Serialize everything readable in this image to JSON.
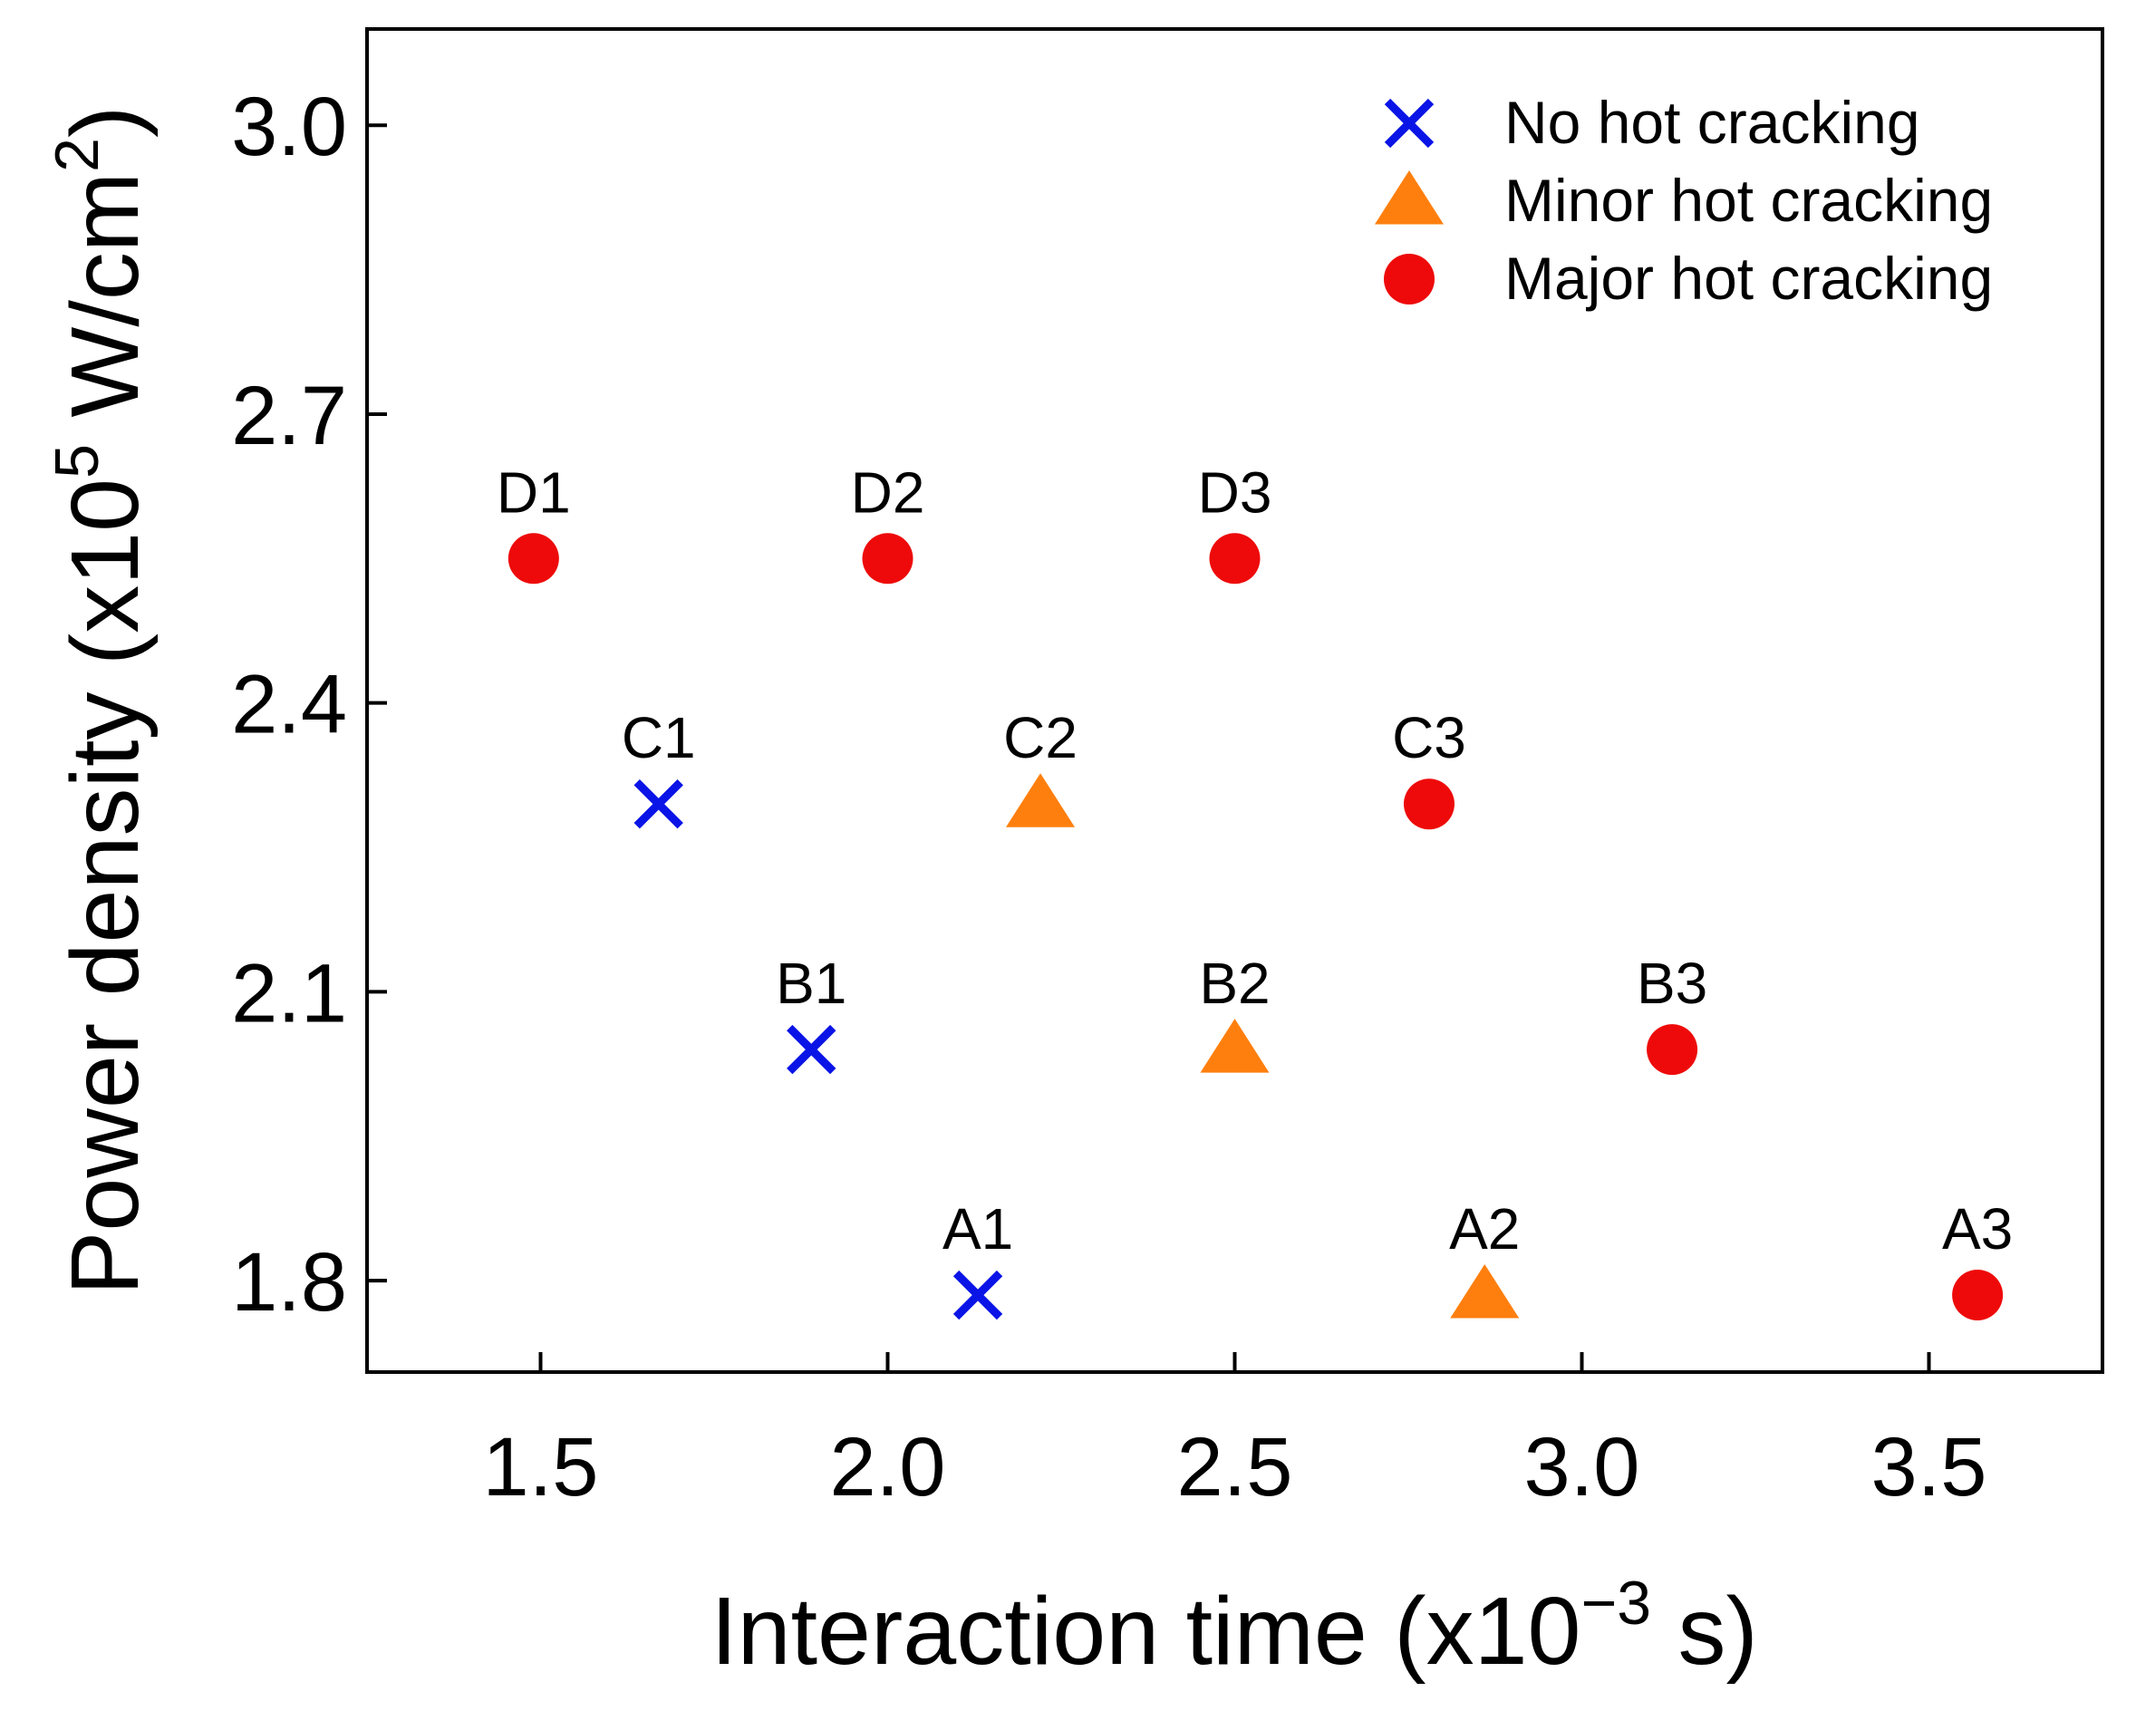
{
  "chart_data": {
    "type": "scatter",
    "title": "",
    "xlabel": {
      "prefix": "Interaction time (x10",
      "sup": "−3",
      "suffix": " s)"
    },
    "ylabel": {
      "prefix": "Power density (x10",
      "sup": "5",
      "mid": " W/cm",
      "sup2": "2",
      "suffix": ")"
    },
    "xlim": [
      1.25,
      3.75
    ],
    "ylim": [
      1.705,
      3.1
    ],
    "xticks": [
      1.5,
      2.0,
      2.5,
      3.0,
      3.5
    ],
    "xtick_labels": [
      "1.5",
      "2.0",
      "2.5",
      "3.0",
      "3.5"
    ],
    "yticks": [
      1.8,
      2.1,
      2.4,
      2.7,
      3.0
    ],
    "ytick_labels": [
      "1.8",
      "2.1",
      "2.4",
      "2.7",
      "3.0"
    ],
    "grid": false,
    "legend_position": "top-right",
    "series": [
      {
        "name": "No hot cracking",
        "marker": "x",
        "color": "#0a14e6",
        "points": [
          {
            "label": "A1",
            "x": 2.13,
            "y": 1.785
          },
          {
            "label": "B1",
            "x": 1.89,
            "y": 2.04
          },
          {
            "label": "C1",
            "x": 1.67,
            "y": 2.295
          }
        ]
      },
      {
        "name": "Minor hot cracking",
        "marker": "triangle",
        "color": "#ff7f0e",
        "points": [
          {
            "label": "A2",
            "x": 2.86,
            "y": 1.785
          },
          {
            "label": "B2",
            "x": 2.5,
            "y": 2.04
          },
          {
            "label": "C2",
            "x": 2.22,
            "y": 2.295
          }
        ]
      },
      {
        "name": "Major hot cracking",
        "marker": "circle",
        "color": "#ee0a0a",
        "points": [
          {
            "label": "A3",
            "x": 3.57,
            "y": 1.785
          },
          {
            "label": "B3",
            "x": 3.13,
            "y": 2.04
          },
          {
            "label": "C3",
            "x": 2.78,
            "y": 2.295
          },
          {
            "label": "D1",
            "x": 1.49,
            "y": 2.55
          },
          {
            "label": "D2",
            "x": 2.0,
            "y": 2.55
          },
          {
            "label": "D3",
            "x": 2.5,
            "y": 2.55
          }
        ]
      }
    ]
  }
}
